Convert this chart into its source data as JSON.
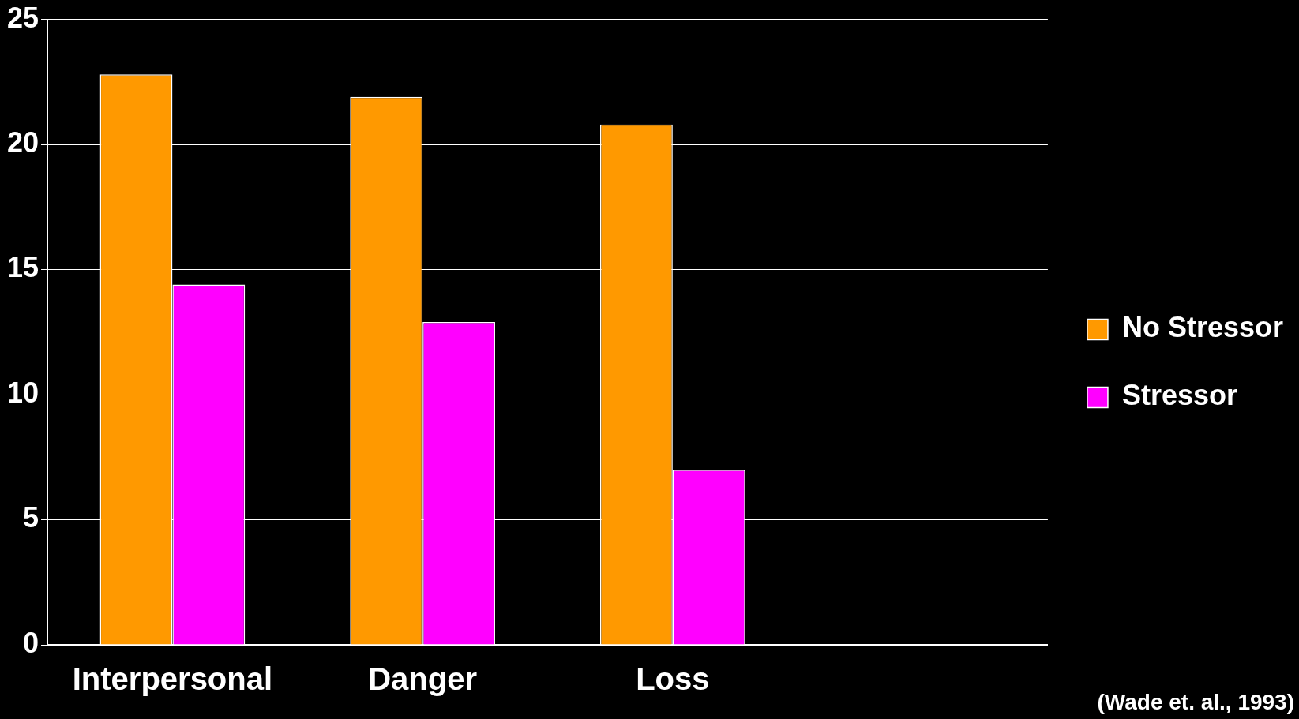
{
  "chart_data": {
    "type": "bar",
    "categories": [
      "Interpersonal",
      "Danger",
      "Loss",
      null
    ],
    "series": [
      {
        "name": "No Stressor",
        "color": "#ff9900",
        "values": [
          22.8,
          21.9,
          20.8,
          null
        ]
      },
      {
        "name": "Stressor",
        "color": "#ff00ff",
        "values": [
          14.4,
          12.9,
          7,
          null
        ]
      }
    ],
    "ylim": [
      0,
      25
    ],
    "yticks": [
      0,
      5,
      10,
      15,
      20,
      25
    ],
    "grid": "y",
    "legend": "right",
    "annotations": [
      "(Wade et. al., 1993)"
    ]
  }
}
